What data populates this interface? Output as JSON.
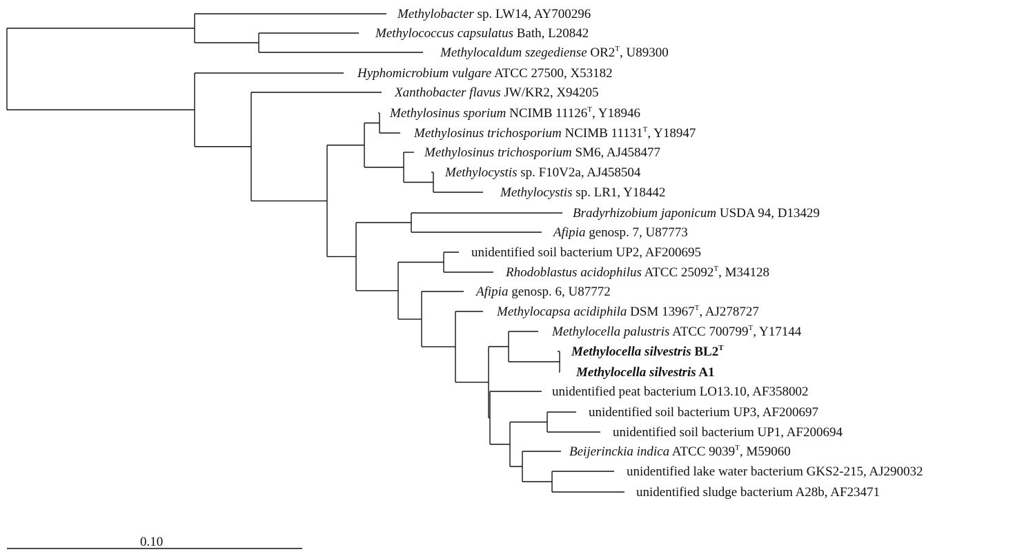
{
  "tree": {
    "taxa": [
      {
        "id": "t0",
        "parts": [
          {
            "t": "Methylobacter",
            "i": true
          },
          {
            "t": " sp. LW14, AY700296"
          }
        ]
      },
      {
        "id": "t1",
        "parts": [
          {
            "t": "Methylococcus capsulatus",
            "i": true
          },
          {
            "t": " Bath, L20842"
          }
        ]
      },
      {
        "id": "t2",
        "parts": [
          {
            "t": "Methylocaldum szegediense",
            "i": true
          },
          {
            "t": " OR2"
          },
          {
            "t": "T",
            "sup": true
          },
          {
            "t": ", U89300"
          }
        ]
      },
      {
        "id": "t3",
        "parts": [
          {
            "t": "Hyphomicrobium vulgare",
            "i": true
          },
          {
            "t": " ATCC 27500, X53182"
          }
        ]
      },
      {
        "id": "t4",
        "parts": [
          {
            "t": "Xanthobacter flavus",
            "i": true
          },
          {
            "t": " JW/KR2, X94205"
          }
        ]
      },
      {
        "id": "t5",
        "parts": [
          {
            "t": "Methylosinus sporium",
            "i": true
          },
          {
            "t": " NCIMB 11126"
          },
          {
            "t": "T",
            "sup": true
          },
          {
            "t": ", Y18946"
          }
        ]
      },
      {
        "id": "t6",
        "parts": [
          {
            "t": "Methylosinus trichosporium",
            "i": true
          },
          {
            "t": " NCIMB 11131"
          },
          {
            "t": "T",
            "sup": true
          },
          {
            "t": ", Y18947"
          }
        ]
      },
      {
        "id": "t7",
        "parts": [
          {
            "t": "Methylosinus trichosporium",
            "i": true
          },
          {
            "t": " SM6, AJ458477"
          }
        ]
      },
      {
        "id": "t8",
        "parts": [
          {
            "t": "Methylocystis",
            "i": true
          },
          {
            "t": " sp. F10V2a, AJ458504"
          }
        ]
      },
      {
        "id": "t9",
        "parts": [
          {
            "t": "Methylocystis",
            "i": true
          },
          {
            "t": " sp. LR1, Y18442"
          }
        ]
      },
      {
        "id": "t10",
        "parts": [
          {
            "t": "Bradyrhizobium japonicum",
            "i": true
          },
          {
            "t": " USDA 94, D13429"
          }
        ]
      },
      {
        "id": "t11",
        "parts": [
          {
            "t": "Afipia",
            "i": true
          },
          {
            "t": " genosp. 7, U87773"
          }
        ]
      },
      {
        "id": "t12",
        "parts": [
          {
            "t": "unidentified soil bacterium UP2, AF200695"
          }
        ]
      },
      {
        "id": "t13",
        "parts": [
          {
            "t": "Rhodoblastus acidophilus",
            "i": true
          },
          {
            "t": " ATCC 25092"
          },
          {
            "t": "T",
            "sup": true
          },
          {
            "t": ", M34128"
          }
        ]
      },
      {
        "id": "t14",
        "parts": [
          {
            "t": "Afipia",
            "i": true
          },
          {
            "t": " genosp. 6, U87772"
          }
        ]
      },
      {
        "id": "t15",
        "parts": [
          {
            "t": "Methylocapsa acidiphila",
            "i": true
          },
          {
            "t": " DSM 13967"
          },
          {
            "t": "T",
            "sup": true
          },
          {
            "t": ", AJ278727"
          }
        ]
      },
      {
        "id": "t16",
        "parts": [
          {
            "t": "Methylocella palustris",
            "i": true
          },
          {
            "t": " ATCC 700799"
          },
          {
            "t": "T",
            "sup": true
          },
          {
            "t": ", Y17144"
          }
        ]
      },
      {
        "id": "t17",
        "bold": true,
        "parts": [
          {
            "t": "Methylocella silvestris",
            "i": true
          },
          {
            "t": " BL2"
          },
          {
            "t": "T",
            "sup": true
          }
        ]
      },
      {
        "id": "t18",
        "bold": true,
        "parts": [
          {
            "t": "Methylocella silvestris",
            "i": true
          },
          {
            "t": " A1"
          }
        ]
      },
      {
        "id": "t19",
        "parts": [
          {
            "t": "unidentified peat bacterium LO13.10, AF358002"
          }
        ]
      },
      {
        "id": "t20",
        "parts": [
          {
            "t": "unidentified soil bacterium UP3, AF200697"
          }
        ]
      },
      {
        "id": "t21",
        "parts": [
          {
            "t": "unidentified soil bacterium UP1, AF200694"
          }
        ]
      },
      {
        "id": "t22",
        "parts": [
          {
            "t": "Beijerinckia indica",
            "i": true
          },
          {
            "t": " ATCC 9039"
          },
          {
            "t": "T",
            "sup": true
          },
          {
            "t": ", M59060"
          }
        ]
      },
      {
        "id": "t23",
        "parts": [
          {
            "t": "unidentified lake water bacterium GKS2-215, AJ290032"
          }
        ]
      },
      {
        "id": "t24",
        "parts": [
          {
            "t": "unidentified sludge bacterium A28b, AF23471"
          }
        ]
      }
    ],
    "scale_bar": {
      "label": "0.10"
    }
  }
}
